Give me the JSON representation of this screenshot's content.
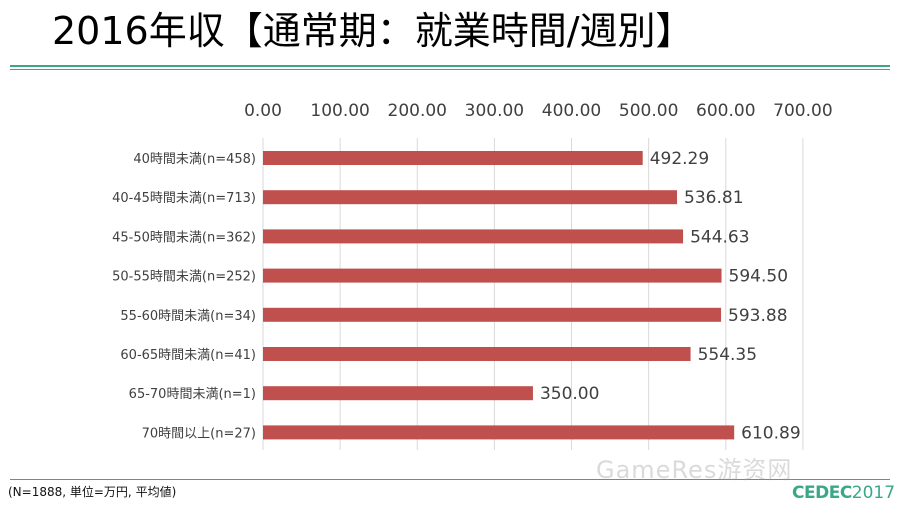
{
  "slide": {
    "title": "2016年収【通常期：就業時間/週別】",
    "footnote": "(N=1888, 単位=万円, 平均値)",
    "watermark": "GameRes游资网",
    "logo_brand": "CEDEC",
    "logo_year": "2017"
  },
  "colors": {
    "accent": "#3aa886",
    "bar": "#c0504d",
    "grid": "#d9d9d9"
  },
  "chart_data": {
    "type": "bar",
    "orientation": "horizontal",
    "title": "",
    "xlabel": "",
    "ylabel": "",
    "xlim": [
      0,
      700
    ],
    "ticks": [
      "0.00",
      "100.00",
      "200.00",
      "300.00",
      "400.00",
      "500.00",
      "600.00",
      "700.00"
    ],
    "tick_values": [
      0,
      100,
      200,
      300,
      400,
      500,
      600,
      700
    ],
    "axis_position": "top",
    "grid": true,
    "categories": [
      "40時間未満(n=458)",
      "40-45時間未満(n=713)",
      "45-50時間未満(n=362)",
      "50-55時間未満(n=252)",
      "55-60時間未満(n=34)",
      "60-65時間未満(n=41)",
      "65-70時間未満(n=1)",
      "70時間以上(n=27)"
    ],
    "values": [
      492.29,
      536.81,
      544.63,
      594.5,
      593.88,
      554.35,
      350.0,
      610.89
    ],
    "data_labels": [
      "492.29",
      "536.81",
      "544.63",
      "594.50",
      "593.88",
      "554.35",
      "350.00",
      "610.89"
    ]
  }
}
